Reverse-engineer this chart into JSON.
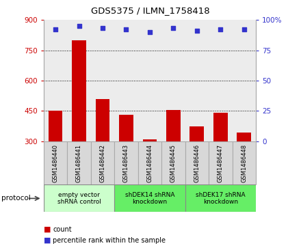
{
  "title": "GDS5375 / ILMN_1758418",
  "samples": [
    "GSM1486440",
    "GSM1486441",
    "GSM1486442",
    "GSM1486443",
    "GSM1486444",
    "GSM1486445",
    "GSM1486446",
    "GSM1486447",
    "GSM1486448"
  ],
  "counts": [
    450,
    800,
    510,
    430,
    310,
    455,
    375,
    440,
    345
  ],
  "percentiles": [
    92,
    95,
    93,
    92,
    90,
    93,
    91,
    92,
    92
  ],
  "ylim_left": [
    300,
    900
  ],
  "ylim_right": [
    0,
    100
  ],
  "yticks_left": [
    300,
    450,
    600,
    750,
    900
  ],
  "yticks_right": [
    0,
    25,
    50,
    75,
    100
  ],
  "bar_color": "#cc0000",
  "dot_color": "#3333cc",
  "bar_width": 0.6,
  "protocols": [
    {
      "label": "empty vector\nshRNA control",
      "start": 0,
      "end": 3,
      "color": "#ccffcc"
    },
    {
      "label": "shDEK14 shRNA\nknockdown",
      "start": 3,
      "end": 6,
      "color": "#66ee66"
    },
    {
      "label": "shDEK17 shRNA\nknockdown",
      "start": 6,
      "end": 9,
      "color": "#66ee66"
    }
  ],
  "protocol_label": "protocol",
  "legend_count_label": "count",
  "legend_percentile_label": "percentile rank within the sample",
  "tick_label_color_left": "#cc0000",
  "tick_label_color_right": "#3333cc",
  "bg_color": "#ffffff",
  "sample_box_color": "#d8d8d8",
  "sample_box_edge": "#aaaaaa"
}
